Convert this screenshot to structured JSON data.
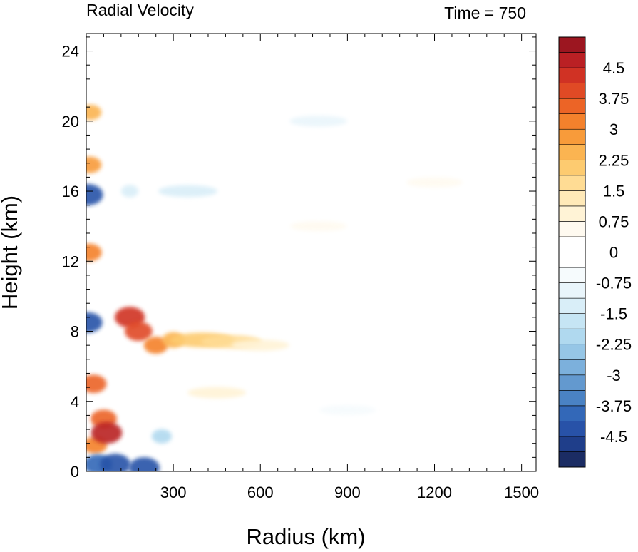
{
  "chart_data": {
    "type": "heatmap",
    "title": "Radial Velocity",
    "subtitle": "Time = 750",
    "xlabel": "Radius (km)",
    "ylabel": "Height (km)",
    "xlim": [
      0,
      1550
    ],
    "ylim": [
      0,
      25
    ],
    "x_ticks": [
      300,
      600,
      900,
      1200,
      1500
    ],
    "y_ticks": [
      0,
      4,
      8,
      12,
      16,
      20,
      24
    ],
    "grid": false,
    "colorbar": {
      "min": -5.25,
      "max": 5.25,
      "step": 0.375,
      "tick_labels": [
        "4.5",
        "3.75",
        "3",
        "2.25",
        "1.5",
        "0.75",
        "0",
        "-0.75",
        "-1.5",
        "-2.25",
        "-3",
        "-3.75",
        "-4.5"
      ],
      "tick_values": [
        4.5,
        3.75,
        3,
        2.25,
        1.5,
        0.75,
        0,
        -0.75,
        -1.5,
        -2.25,
        -3,
        -3.75,
        -4.5
      ],
      "colors_low_to_high": [
        "#1b2c63",
        "#1f3e8a",
        "#2852a8",
        "#3368b8",
        "#4a82c4",
        "#6399cf",
        "#7cb0dc",
        "#96c6e6",
        "#b0d9ef",
        "#c6e5f4",
        "#d9eef8",
        "#e9f5fb",
        "#f6fbfd",
        "#ffffff",
        "#ffffff",
        "#fffaf0",
        "#fff3d6",
        "#ffe9b8",
        "#ffdc94",
        "#fdcb70",
        "#fbb451",
        "#f89b3a",
        "#f4812c",
        "#ec6426",
        "#e04a25",
        "#d03224",
        "#ba2024",
        "#9c1620"
      ]
    },
    "features": [
      {
        "x": 5,
        "y": 8.5,
        "value": -4.2
      },
      {
        "x": 5,
        "y": 15.8,
        "value": -4.5
      },
      {
        "x": 10,
        "y": 12.5,
        "value": 3.2
      },
      {
        "x": 12,
        "y": 17.5,
        "value": 2.8
      },
      {
        "x": 15,
        "y": 20.5,
        "value": 2.4
      },
      {
        "x": 25,
        "y": 5.0,
        "value": 3.4
      },
      {
        "x": 30,
        "y": 1.5,
        "value": 3.0
      },
      {
        "x": 40,
        "y": 0.4,
        "value": -4.0
      },
      {
        "x": 60,
        "y": 3.0,
        "value": 3.5
      },
      {
        "x": 70,
        "y": 2.2,
        "value": 4.6
      },
      {
        "x": 100,
        "y": 0.4,
        "value": -4.5
      },
      {
        "x": 150,
        "y": 8.8,
        "value": 4.4
      },
      {
        "x": 180,
        "y": 8.0,
        "value": 3.8
      },
      {
        "x": 200,
        "y": 0.2,
        "value": -4.5
      },
      {
        "x": 240,
        "y": 7.2,
        "value": 3.0
      },
      {
        "x": 260,
        "y": 2.0,
        "value": -2.0
      },
      {
        "x": 300,
        "y": 7.5,
        "value": 2.6
      },
      {
        "x": 400,
        "y": 7.5,
        "value": 2.2
      },
      {
        "x": 500,
        "y": 7.4,
        "value": 1.6
      },
      {
        "x": 600,
        "y": 7.2,
        "value": 0.9
      },
      {
        "x": 150,
        "y": 16.0,
        "value": -1.4
      },
      {
        "x": 350,
        "y": 16.0,
        "value": -1.2
      },
      {
        "x": 450,
        "y": 4.5,
        "value": 1.0
      },
      {
        "x": 800,
        "y": 14.0,
        "value": 0.6
      },
      {
        "x": 1200,
        "y": 16.5,
        "value": 0.5
      },
      {
        "x": 800,
        "y": 20.0,
        "value": -0.8
      },
      {
        "x": 900,
        "y": 3.5,
        "value": -0.6
      }
    ]
  }
}
